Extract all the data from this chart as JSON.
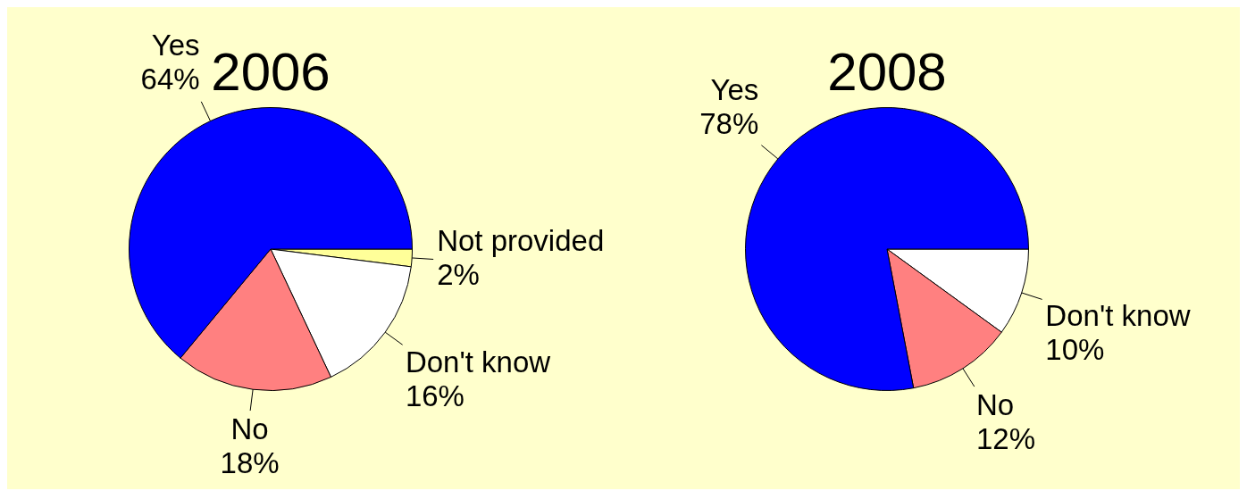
{
  "chart_data": [
    {
      "type": "pie",
      "title": "2006",
      "categories": [
        "Not provided",
        "Don't know",
        "No",
        "Yes"
      ],
      "values": [
        2,
        16,
        18,
        64
      ],
      "value_labels": [
        "2%",
        "16%",
        "18%",
        "64%"
      ],
      "colors": [
        "#ffff99",
        "#ffffff",
        "#ff8080",
        "#0000ff"
      ]
    },
    {
      "type": "pie",
      "title": "2008",
      "categories": [
        "Don't know",
        "No",
        "Yes"
      ],
      "values": [
        10,
        12,
        78
      ],
      "value_labels": [
        "10%",
        "12%",
        "78%"
      ],
      "colors": [
        "#ffffff",
        "#ff8080",
        "#0000ff"
      ]
    }
  ]
}
